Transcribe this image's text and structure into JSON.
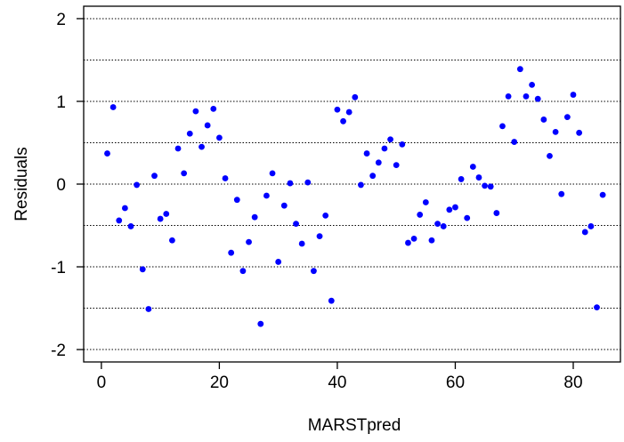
{
  "chart_data": {
    "type": "scatter",
    "title": "",
    "xlabel": "MARSTpred",
    "ylabel": "Residuals",
    "xlim": [
      -3,
      88
    ],
    "ylim": [
      -2.15,
      2.15
    ],
    "xticks": [
      0,
      20,
      40,
      60,
      80
    ],
    "yticks": [
      -2,
      -1,
      0,
      1,
      2
    ],
    "grid": "horizontal-dotted",
    "gridlines": [
      -2,
      -1.5,
      -1,
      -0.5,
      0,
      0.5,
      1,
      1.5,
      2
    ],
    "point_color": "#0000ff",
    "series": [
      {
        "x": [
          1,
          2,
          3,
          4,
          5,
          6,
          7,
          8,
          9,
          10,
          11,
          12,
          13,
          14,
          15,
          16,
          17,
          18,
          19,
          20,
          21,
          22,
          23,
          24,
          25,
          26,
          27,
          28,
          29,
          30,
          31,
          32,
          33,
          34,
          35,
          36,
          37,
          38,
          39,
          40,
          41,
          42,
          43,
          44,
          45,
          46,
          47,
          48,
          49,
          50,
          51,
          52,
          53,
          54,
          55,
          56,
          57,
          58,
          59,
          60,
          61,
          62,
          63,
          64,
          65,
          66,
          67,
          68,
          69,
          70,
          71,
          72,
          73,
          74,
          75,
          76,
          77,
          78,
          79,
          80,
          81,
          82,
          83,
          84,
          85
        ],
        "y": [
          0.37,
          0.93,
          -0.44,
          -0.29,
          -0.51,
          -0.01,
          -1.03,
          -1.51,
          0.1,
          -0.42,
          -0.36,
          -0.68,
          0.43,
          0.13,
          0.61,
          0.88,
          0.45,
          0.71,
          0.91,
          0.56,
          0.07,
          -0.83,
          -0.19,
          -1.05,
          -0.7,
          -0.4,
          -1.69,
          -0.14,
          0.13,
          -0.94,
          -0.26,
          0.01,
          -0.48,
          -0.72,
          0.02,
          -1.05,
          -0.63,
          -0.38,
          -1.41,
          0.9,
          0.76,
          0.87,
          1.05,
          -0.01,
          0.37,
          0.1,
          0.26,
          0.43,
          0.54,
          0.23,
          0.48,
          -0.71,
          -0.66,
          -0.37,
          -0.22,
          -0.68,
          -0.48,
          -0.51,
          -0.31,
          -0.28,
          0.06,
          -0.41,
          0.21,
          0.08,
          -0.02,
          -0.03,
          -0.35,
          0.7,
          1.06,
          0.51,
          1.39,
          1.06,
          1.2,
          1.03,
          0.78,
          0.34,
          0.63,
          -0.12,
          0.81,
          1.08,
          0.62,
          -0.58,
          -0.51,
          -1.49,
          -0.13
        ]
      }
    ]
  }
}
